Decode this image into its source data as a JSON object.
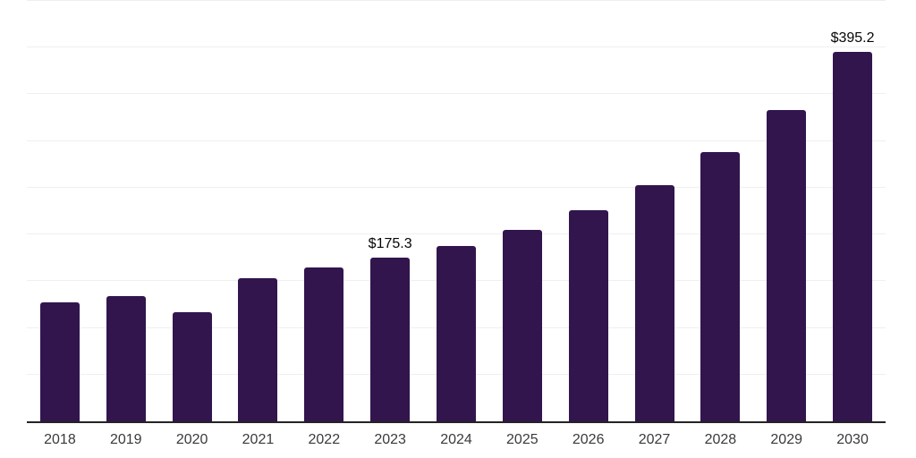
{
  "chart_data": {
    "type": "bar",
    "title": "",
    "xlabel": "",
    "ylabel": "",
    "categories": [
      "2018",
      "2019",
      "2020",
      "2021",
      "2022",
      "2023",
      "2024",
      "2025",
      "2026",
      "2027",
      "2028",
      "2029",
      "2030"
    ],
    "values": [
      126.9,
      134.3,
      116.9,
      153.1,
      164.3,
      175.3,
      188.0,
      205.3,
      226.1,
      253.2,
      288.4,
      333.1,
      395.2
    ],
    "value_labels": {
      "2023": "$175.3",
      "2030": "$395.2"
    },
    "ylim": [
      0,
      450
    ],
    "gridline_step": 50,
    "grid": "horizontal",
    "legend": "none",
    "colors": {
      "bar": "#32154d",
      "gridline": "#efefef",
      "axis_line": "#242424",
      "tick_label": "#3a3a3a",
      "value_label": "#050505",
      "background": "#ffffff"
    }
  }
}
